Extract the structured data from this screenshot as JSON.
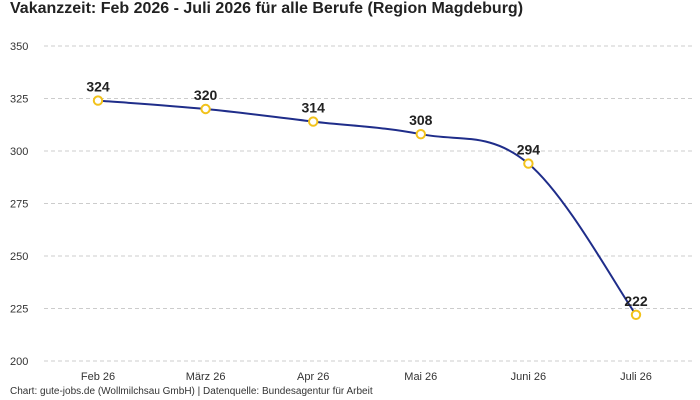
{
  "chart_data": {
    "type": "line",
    "title": "Vakanzzeit: Feb 2026 - Juli 2026 für alle Berufe (Region Magdeburg)",
    "xlabel": "",
    "ylabel": "",
    "categories": [
      "Feb 26",
      "März 26",
      "Apr 26",
      "Mai 26",
      "Juni 26",
      "Juli 26"
    ],
    "series": [
      {
        "values": [
          324,
          320,
          314,
          308,
          294,
          222
        ]
      }
    ],
    "ylim": [
      200,
      350
    ],
    "yticks": [
      200,
      225,
      250,
      275,
      300,
      325,
      350
    ],
    "grid": true,
    "legend": "none",
    "line_color": "#1f2d8a",
    "marker_color": "#f2c21b",
    "grid_color": "#cccccc"
  },
  "footer": "Chart: gute-jobs.de (Wollmilchsau GmbH) | Datenquelle: Bundesagentur für Arbeit"
}
